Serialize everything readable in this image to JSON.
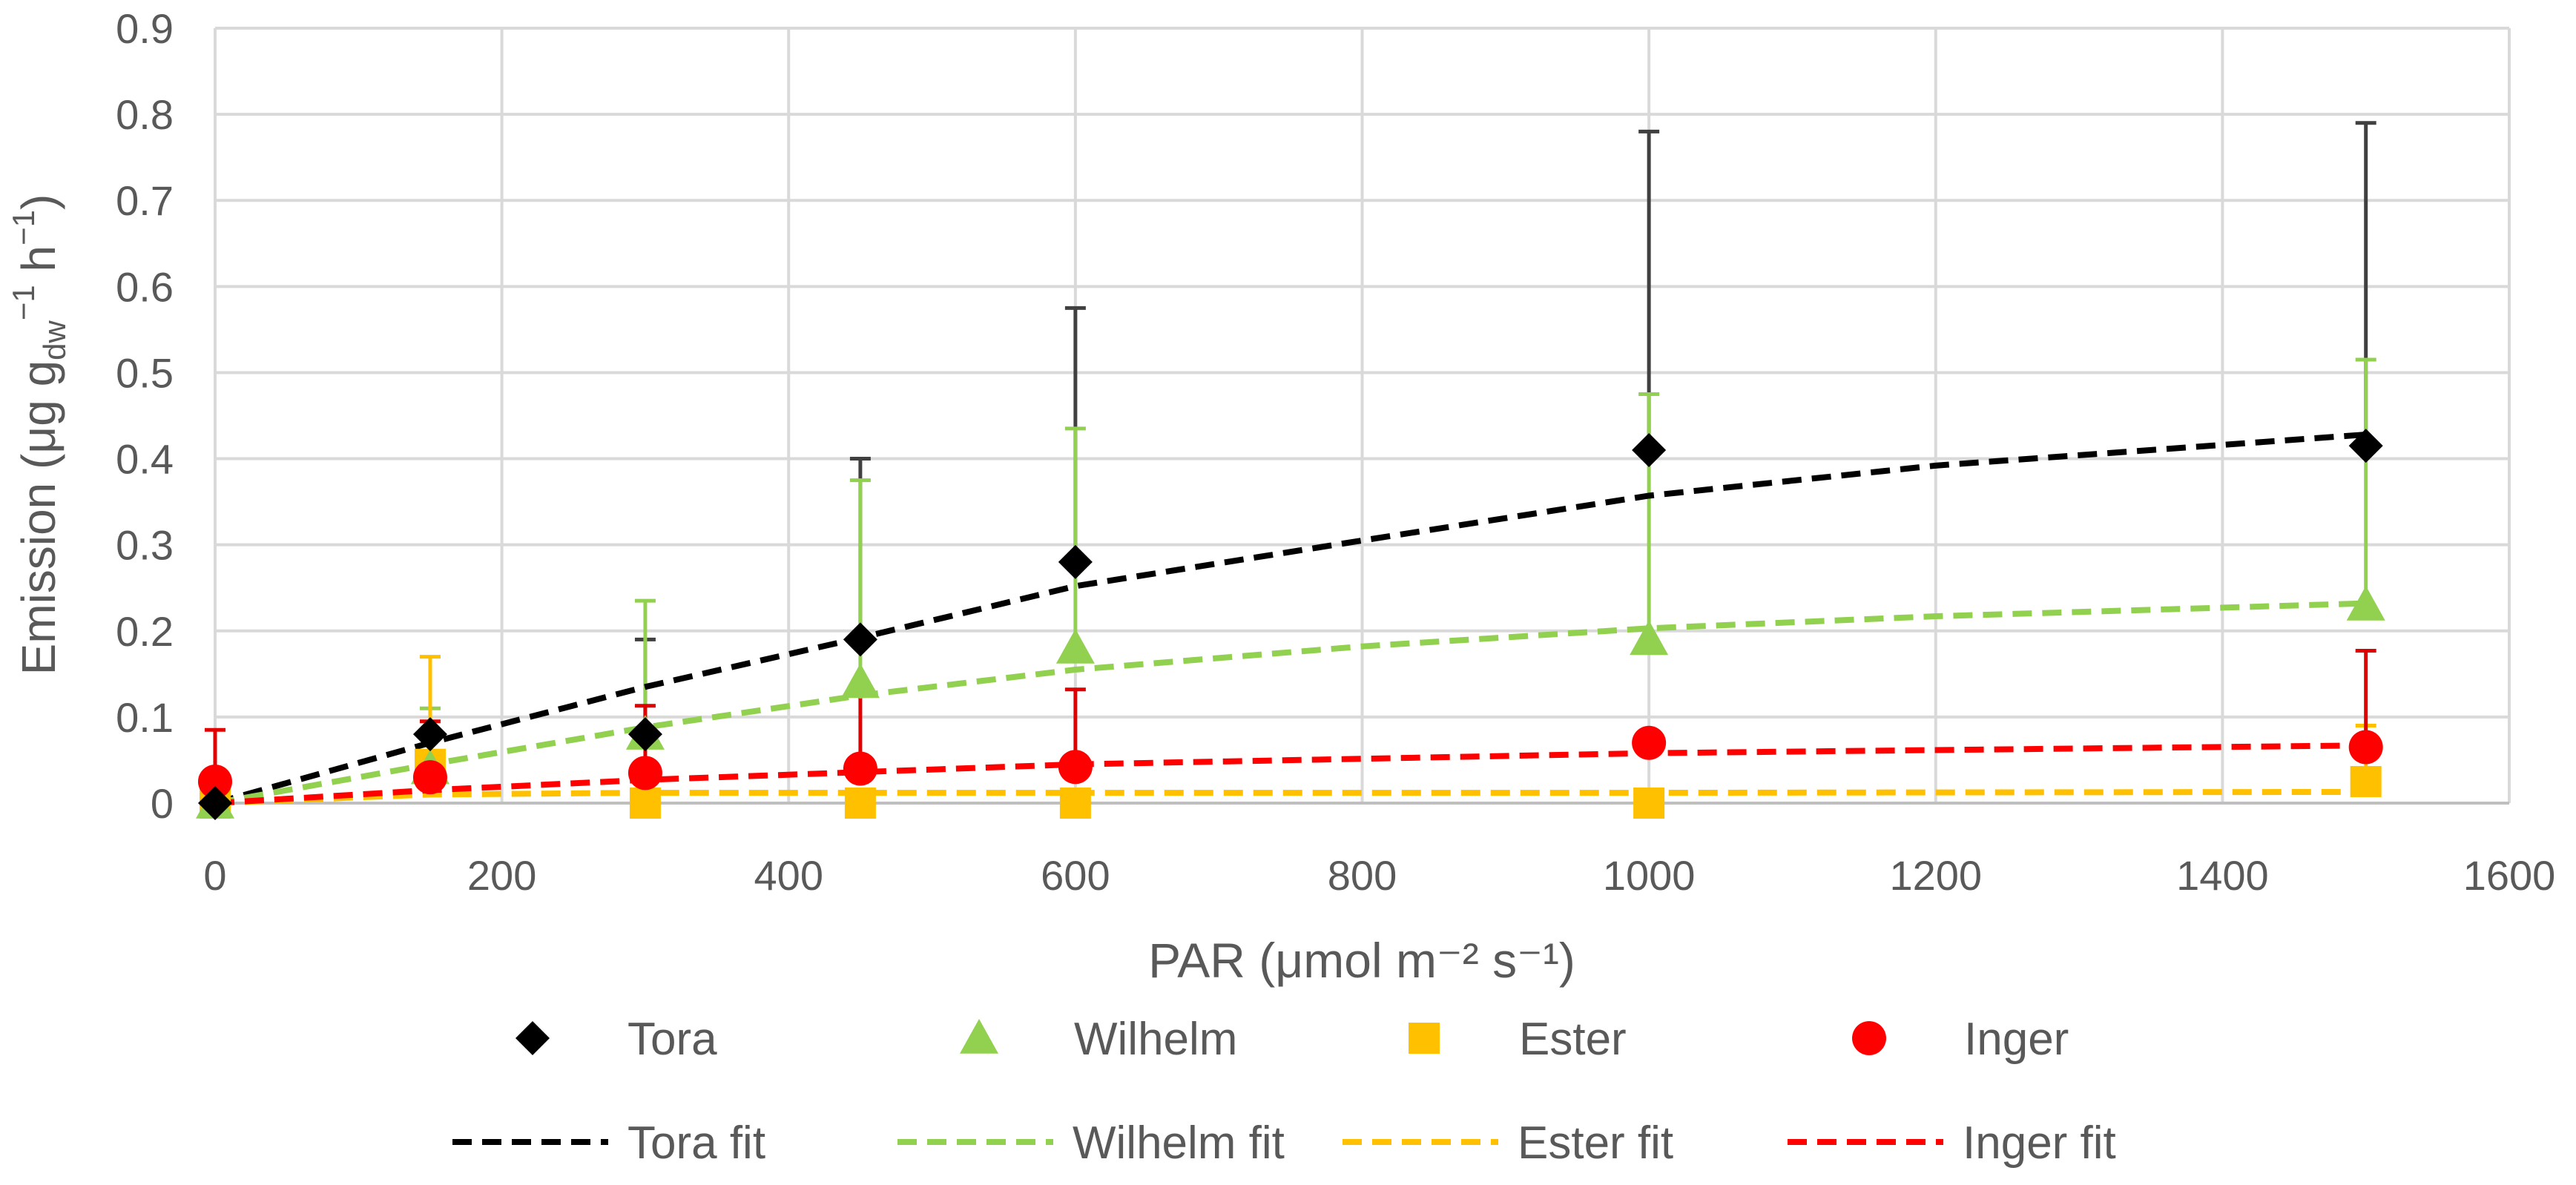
{
  "chart_data": {
    "type": "scatter",
    "xlabel": "PAR (μmol m⁻² s⁻¹)",
    "ylabel": {
      "prefix": "Emission (μg g",
      "sub": "dw",
      "sup1": "−1",
      "mid": " h",
      "sup2": "−1",
      "suffix": ")"
    },
    "xlim": [
      0,
      1600
    ],
    "ylim": [
      0,
      0.9
    ],
    "xticks": [
      "0",
      "200",
      "400",
      "600",
      "800",
      "1000",
      "1200",
      "1400",
      "1600"
    ],
    "yticks": [
      "0",
      "0.1",
      "0.2",
      "0.3",
      "0.4",
      "0.5",
      "0.6",
      "0.7",
      "0.8",
      "0.9"
    ],
    "grid": true,
    "legend_position": "bottom",
    "x": [
      0,
      150,
      300,
      450,
      600,
      1000,
      1500
    ],
    "series": [
      {
        "name": "Tora",
        "marker": "diamond",
        "color": "#000000",
        "error_color": "#404040",
        "values": [
          0.0,
          0.08,
          0.08,
          0.19,
          0.28,
          0.41,
          0.415
        ],
        "errors": [
          0.0,
          0.0,
          0.11,
          0.21,
          0.295,
          0.37,
          0.375
        ]
      },
      {
        "name": "Wilhelm",
        "marker": "triangle",
        "color": "#92d050",
        "error_color": "#92d050",
        "values": [
          0.0,
          0.04,
          0.08,
          0.14,
          0.18,
          0.19,
          0.23
        ],
        "errors": [
          0.0,
          0.07,
          0.155,
          0.235,
          0.255,
          0.285,
          0.285
        ]
      },
      {
        "name": "Ester",
        "marker": "square",
        "color": "#ffc000",
        "error_color": "#ffc000",
        "values": [
          0.0,
          0.045,
          0.0,
          0.0,
          0.0,
          0.0,
          0.025
        ],
        "errors": [
          0.0,
          0.125,
          0.0,
          0.0,
          0.0,
          0.0,
          0.065
        ]
      },
      {
        "name": "Inger",
        "marker": "circle",
        "color": "#ff0000",
        "error_color": "#e00000",
        "values": [
          0.025,
          0.03,
          0.035,
          0.04,
          0.042,
          0.07,
          0.065
        ],
        "errors": [
          0.06,
          0.065,
          0.078,
          0.085,
          0.09,
          0.0,
          0.112
        ]
      }
    ],
    "fits": [
      {
        "name": "Tora fit",
        "color": "#000000",
        "x": [
          0,
          150,
          300,
          450,
          600,
          800,
          1000,
          1200,
          1500
        ],
        "values": [
          0.0,
          0.07,
          0.135,
          0.192,
          0.252,
          0.305,
          0.357,
          0.392,
          0.428
        ]
      },
      {
        "name": "Wilhelm fit",
        "color": "#92d050",
        "x": [
          0,
          150,
          300,
          450,
          600,
          800,
          1000,
          1200,
          1500
        ],
        "values": [
          0.0,
          0.045,
          0.088,
          0.125,
          0.155,
          0.182,
          0.203,
          0.217,
          0.232
        ]
      },
      {
        "name": "Ester fit",
        "color": "#ffc000",
        "x": [
          0,
          150,
          300,
          450,
          600,
          1000,
          1500
        ],
        "values": [
          0.0,
          0.01,
          0.012,
          0.012,
          0.012,
          0.012,
          0.013
        ]
      },
      {
        "name": "Inger fit",
        "color": "#ff0000",
        "x": [
          0,
          150,
          300,
          450,
          600,
          1000,
          1500
        ],
        "values": [
          0.0,
          0.015,
          0.027,
          0.036,
          0.045,
          0.058,
          0.067
        ]
      }
    ]
  }
}
